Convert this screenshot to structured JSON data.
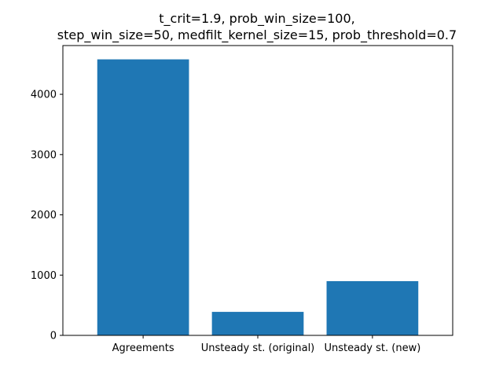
{
  "chart_data": {
    "type": "bar",
    "title_lines": [
      "t_crit=1.9, prob_win_size=100,",
      "step_win_size=50, medfilt_kernel_size=15, prob_threshold=0.7"
    ],
    "categories": [
      "Agreements",
      "Unsteady st. (original)",
      "Unsteady st. (new)"
    ],
    "values": [
      4580,
      390,
      900
    ],
    "bar_color": "#1f77b4",
    "xlabel": "",
    "ylabel": "",
    "ylim": [
      0,
      4809
    ],
    "yticks": [
      0,
      1000,
      2000,
      3000,
      4000
    ],
    "grid": false
  }
}
